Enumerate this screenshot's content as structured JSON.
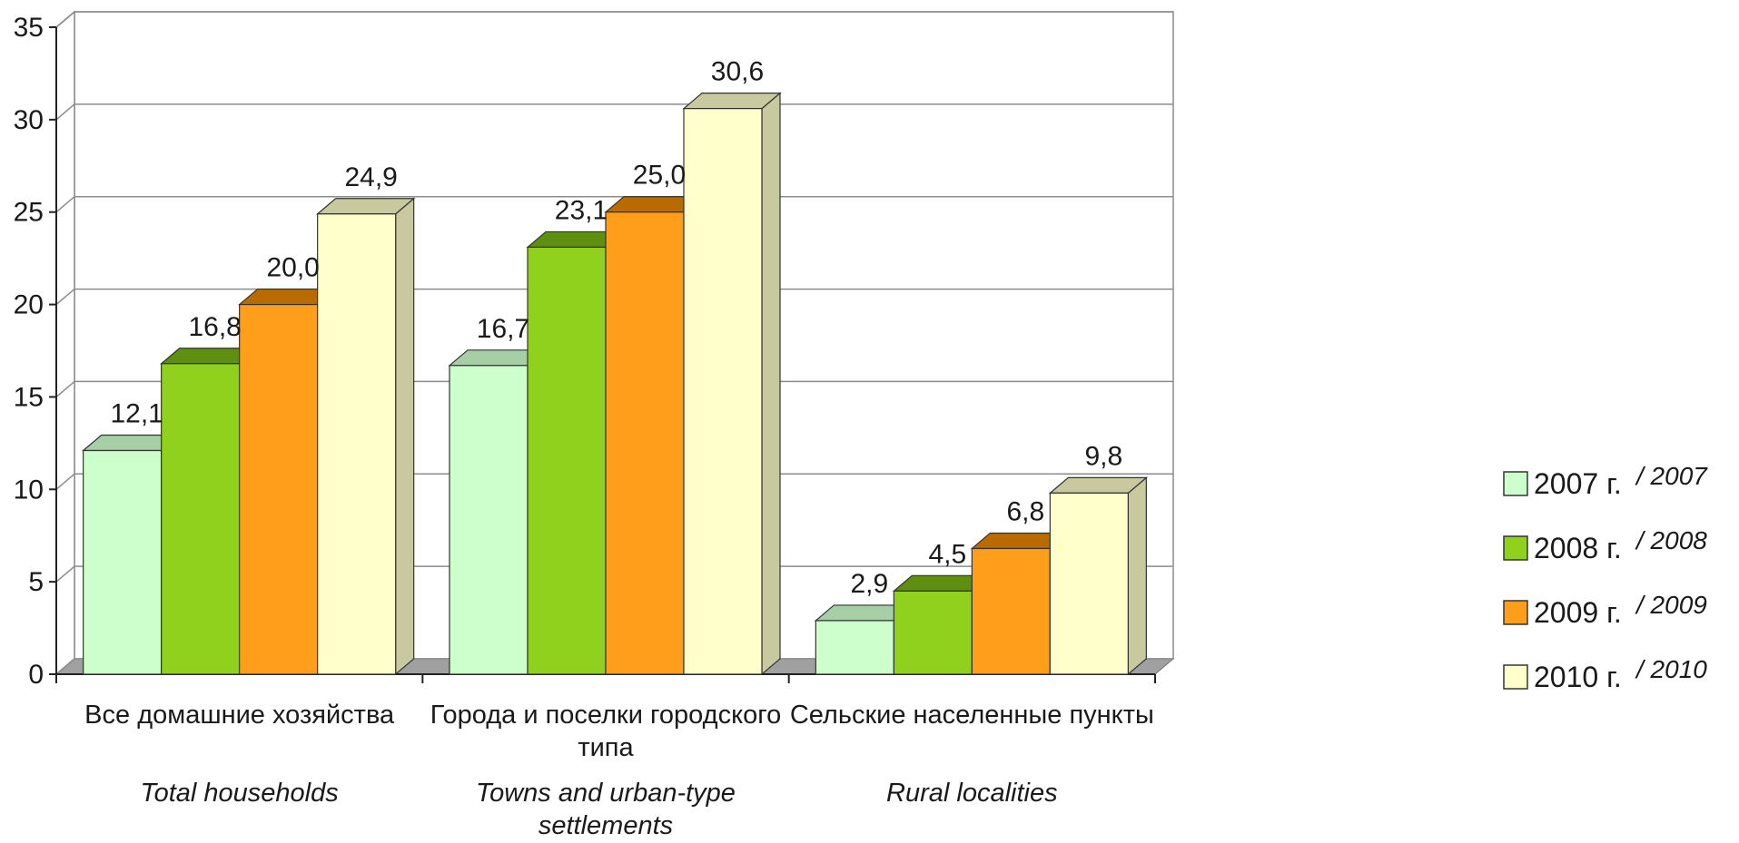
{
  "chart_data": {
    "type": "bar",
    "style": "3d-clustered-column",
    "categories": [
      {
        "label_ru": "Все домашние хозяйства",
        "label_en": "Total households"
      },
      {
        "label_ru": "Города и поселки городского типа",
        "label_en": "Towns and urban-type settlements"
      },
      {
        "label_ru": "Сельские населенные пункты",
        "label_en": "Rural localities"
      }
    ],
    "series": [
      {
        "name": "2007 г.",
        "name_en": "/ 2007",
        "color": "#ccffcc",
        "side_color": "#a6cfa6",
        "values": [
          12.1,
          16.7,
          2.9
        ],
        "value_labels": [
          "12,1",
          "16,7",
          "2,9"
        ]
      },
      {
        "name": "2008 г.",
        "name_en": "/ 2008",
        "color": "#8fd11c",
        "side_color": "#5f8f10",
        "values": [
          16.8,
          23.1,
          4.5
        ],
        "value_labels": [
          "16,8",
          "23,1",
          "4,5"
        ]
      },
      {
        "name": "2009 г.",
        "name_en": "/ 2009",
        "color": "#ff9e1a",
        "side_color": "#b86c00",
        "values": [
          20.0,
          25.0,
          6.8
        ],
        "value_labels": [
          "20,0",
          "25,0",
          "6,8"
        ]
      },
      {
        "name": "2010 г.",
        "name_en": "/ 2010",
        "color": "#ffffcc",
        "side_color": "#c9c9a0",
        "values": [
          24.9,
          30.6,
          9.8
        ],
        "value_labels": [
          "24,9",
          "30,6",
          "9,8"
        ]
      }
    ],
    "ylim": [
      0,
      35
    ],
    "yticks": [
      0,
      5,
      10,
      15,
      20,
      25,
      30,
      35
    ],
    "grid": true,
    "legend_position": "right",
    "title": "",
    "xlabel": "",
    "ylabel": ""
  }
}
